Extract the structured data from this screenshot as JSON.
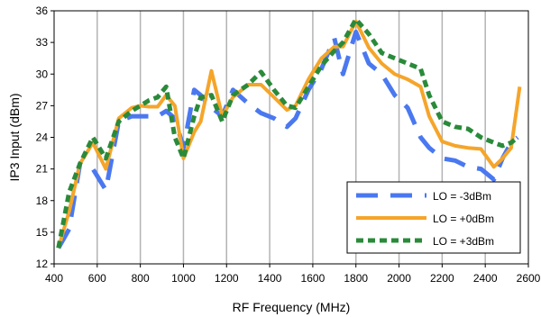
{
  "chart_data": {
    "type": "line",
    "title": "",
    "xlabel": "RF Frequency (MHz)",
    "ylabel": "IP3 Input (dBm)",
    "xlim": [
      400,
      2600
    ],
    "ylim": [
      12,
      36
    ],
    "xticks": [
      400,
      600,
      800,
      1000,
      1200,
      1400,
      1600,
      1800,
      2000,
      2200,
      2400,
      2600
    ],
    "yticks": [
      12,
      15,
      18,
      21,
      24,
      27,
      30,
      33,
      36
    ],
    "grid": "vertical",
    "legend_position": "bottom-right",
    "series": [
      {
        "name": "LO = -3dBm",
        "color": "#4a78f0",
        "style": "long-dash",
        "x": [
          420,
          470,
          520,
          580,
          640,
          700,
          760,
          800,
          840,
          880,
          920,
          960,
          1000,
          1050,
          1080,
          1120,
          1180,
          1230,
          1300,
          1360,
          1420,
          1480,
          1520,
          1580,
          1640,
          1700,
          1740,
          1800,
          1860,
          1920,
          1980,
          2040,
          2100,
          2140,
          2200,
          2260,
          2320,
          2380,
          2440,
          2480,
          2520,
          2550
        ],
        "y": [
          13.5,
          15.3,
          21.5,
          21.0,
          19.0,
          25.5,
          26.0,
          26.0,
          26.0,
          26.0,
          26.5,
          25.8,
          23.0,
          28.5,
          28.0,
          27.0,
          26.0,
          28.5,
          27.2,
          26.3,
          25.8,
          25.0,
          25.8,
          28.5,
          30.5,
          33.4,
          30.0,
          34.0,
          31.0,
          30.0,
          28.0,
          26.8,
          24.0,
          23.0,
          22.0,
          21.8,
          21.2,
          21.0,
          20.0,
          22.0,
          23.5,
          24.0
        ]
      },
      {
        "name": "LO = +0dBm",
        "color": "#f5a52a",
        "style": "solid",
        "x": [
          420,
          470,
          520,
          580,
          640,
          700,
          760,
          800,
          840,
          880,
          920,
          960,
          1000,
          1050,
          1080,
          1130,
          1180,
          1230,
          1300,
          1360,
          1420,
          1480,
          1520,
          1580,
          1640,
          1700,
          1740,
          1800,
          1860,
          1920,
          1980,
          2040,
          2100,
          2140,
          2200,
          2260,
          2320,
          2380,
          2440,
          2480,
          2520,
          2560
        ],
        "y": [
          13.5,
          17.0,
          21.5,
          23.5,
          21.0,
          25.8,
          26.8,
          27.0,
          26.9,
          26.9,
          28.0,
          27.0,
          22.0,
          24.5,
          25.5,
          30.3,
          26.0,
          27.8,
          29.0,
          29.0,
          27.8,
          26.6,
          27.0,
          29.5,
          31.5,
          32.6,
          32.6,
          35.0,
          32.5,
          31.0,
          30.0,
          29.5,
          28.8,
          26.0,
          23.6,
          23.2,
          23.0,
          22.9,
          21.2,
          22.0,
          23.0,
          28.8
        ]
      },
      {
        "name": "LO = +3dBm",
        "color": "#2a8a3a",
        "style": "short-dash",
        "x": [
          420,
          470,
          520,
          580,
          640,
          700,
          760,
          800,
          840,
          880,
          920,
          960,
          1000,
          1050,
          1080,
          1130,
          1180,
          1230,
          1300,
          1360,
          1420,
          1480,
          1520,
          1580,
          1640,
          1700,
          1740,
          1800,
          1860,
          1920,
          1980,
          2040,
          2100,
          2140,
          2200,
          2260,
          2320,
          2380,
          2440,
          2480,
          2520,
          2550
        ],
        "y": [
          13.5,
          18.8,
          21.5,
          24.0,
          22.0,
          25.5,
          26.5,
          27.0,
          27.5,
          27.8,
          28.8,
          24.0,
          22.0,
          26.0,
          27.8,
          28.0,
          25.5,
          28.0,
          29.0,
          30.2,
          28.5,
          27.0,
          26.8,
          28.8,
          30.8,
          32.2,
          33.0,
          35.2,
          33.8,
          32.0,
          31.5,
          31.0,
          30.5,
          28.0,
          25.5,
          25.0,
          24.8,
          24.0,
          23.5,
          23.2,
          23.5,
          24.0
        ]
      }
    ]
  }
}
